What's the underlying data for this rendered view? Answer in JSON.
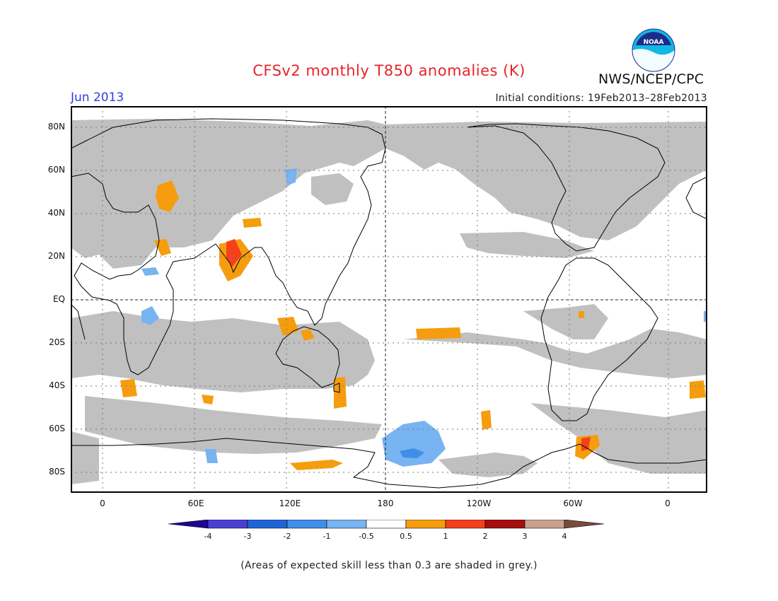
{
  "title": "CFSv2 monthly T850 anomalies (K)",
  "month": "Jun 2013",
  "initial_conditions": "Initial conditions: 19Feb2013–28Feb2013",
  "agency": "NWS/NCEP/CPC",
  "logo_text": "NOAA",
  "lat_labels": [
    "80N",
    "60N",
    "40N",
    "20N",
    "EQ",
    "20S",
    "40S",
    "60S",
    "80S"
  ],
  "lon_labels": [
    "0",
    "60E",
    "120E",
    "180",
    "120W",
    "60W",
    "0"
  ],
  "colorbar": {
    "tick_labels": [
      "-4",
      "-3",
      "-2",
      "-1",
      "-0.5",
      "0.5",
      "1",
      "2",
      "3",
      "4"
    ],
    "colors": [
      "#1e0596",
      "#4a3fd3",
      "#1e64d7",
      "#3f8ee8",
      "#78b3f2",
      "#ffffff",
      "#f59d0e",
      "#f4411c",
      "#a50e0e",
      "#c9a08f",
      "#7a4b3b"
    ]
  },
  "colors": {
    "skill_mask_grey": "#c0c0c0",
    "title_red": "#e8242a",
    "month_blue": "#2b3fe0"
  },
  "note": "(Areas of expected skill less than 0.3 are shaded in grey.)"
}
